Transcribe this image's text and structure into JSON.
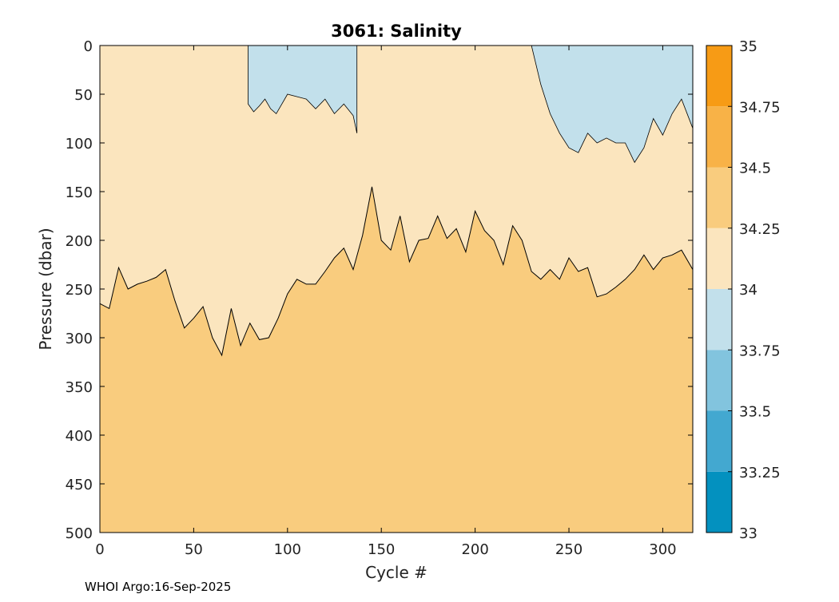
{
  "chart_data": {
    "type": "contourf",
    "title": "3061:  Salinity",
    "xlabel": "Cycle #",
    "ylabel": "Pressure (dbar)",
    "xlim": [
      0,
      316
    ],
    "ylim": [
      0,
      500
    ],
    "y_reversed": true,
    "x_ticks": [
      0,
      50,
      100,
      150,
      200,
      250,
      300
    ],
    "y_ticks": [
      0,
      50,
      100,
      150,
      200,
      250,
      300,
      350,
      400,
      450,
      500
    ],
    "colorbar": {
      "levels": [
        33,
        33.25,
        33.5,
        33.75,
        34,
        34.25,
        34.5,
        34.75,
        35
      ],
      "tick_labels": [
        "33",
        "33.25",
        "33.5",
        "33.75",
        "34",
        "34.25",
        "34.5",
        "34.75",
        "35"
      ],
      "colors": [
        "#0391bf",
        "#43a8d0",
        "#82c4de",
        "#c2e0eb",
        "#fbe5be",
        "#f9cc7e",
        "#f8b247",
        "#f79b15"
      ]
    },
    "regions": {
      "deep_band": {
        "range": "34.25-34.5",
        "color": "#f9cc7e"
      },
      "middle_band": {
        "range": "34-34.25",
        "color": "#fbe5be"
      },
      "surface_fresh": {
        "range": "33.75-34",
        "color": "#c2e0eb"
      }
    },
    "isoline_34_25": {
      "cycle": [
        0,
        5,
        10,
        15,
        20,
        25,
        30,
        35,
        40,
        45,
        50,
        55,
        60,
        65,
        70,
        75,
        80,
        85,
        90,
        95,
        100,
        105,
        110,
        115,
        120,
        125,
        130,
        135,
        140,
        145,
        150,
        155,
        160,
        165,
        170,
        175,
        180,
        185,
        190,
        195,
        200,
        205,
        210,
        215,
        220,
        225,
        230,
        235,
        240,
        245,
        250,
        255,
        260,
        265,
        270,
        275,
        280,
        285,
        290,
        295,
        300,
        305,
        310,
        316
      ],
      "pressure": [
        265,
        270,
        228,
        250,
        245,
        242,
        238,
        230,
        262,
        290,
        280,
        268,
        300,
        318,
        270,
        308,
        285,
        302,
        300,
        280,
        255,
        240,
        245,
        245,
        232,
        218,
        208,
        230,
        195,
        145,
        200,
        210,
        175,
        222,
        200,
        198,
        175,
        198,
        188,
        212,
        170,
        190,
        200,
        225,
        185,
        200,
        232,
        240,
        230,
        240,
        218,
        232,
        228,
        258,
        255,
        248,
        240,
        230,
        215,
        230,
        218,
        215,
        210,
        230
      ]
    },
    "isoline_34_top": {
      "cycle": [
        79,
        82,
        85,
        88,
        91,
        94,
        97,
        100,
        110,
        115,
        120,
        125,
        130,
        135,
        137,
        230,
        235,
        240,
        245,
        250,
        255,
        260,
        265,
        270,
        275,
        280,
        285,
        290,
        295,
        300,
        305,
        310,
        316
      ],
      "pressure": [
        60,
        68,
        62,
        55,
        65,
        70,
        60,
        50,
        55,
        65,
        55,
        70,
        60,
        72,
        90,
        0,
        40,
        70,
        90,
        105,
        110,
        90,
        100,
        95,
        100,
        100,
        120,
        105,
        75,
        92,
        70,
        55,
        85
      ]
    },
    "annotation_footer": "WHOI Argo:16-Sep-2025"
  }
}
